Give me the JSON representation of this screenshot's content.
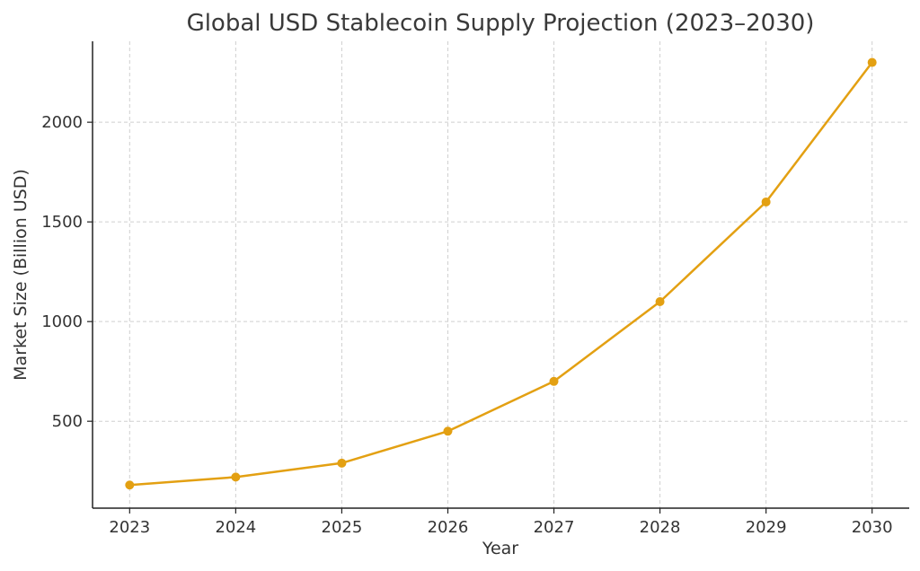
{
  "chart_data": {
    "type": "line",
    "title": "Global USD Stablecoin Supply Projection (2023–2030)",
    "xlabel": "Year",
    "ylabel": "Market Size (Billion USD)",
    "categories": [
      "2023",
      "2024",
      "2025",
      "2026",
      "2027",
      "2028",
      "2029",
      "2030"
    ],
    "x": [
      2023,
      2024,
      2025,
      2026,
      2027,
      2028,
      2029,
      2030
    ],
    "series": [
      {
        "values": [
          180,
          220,
          290,
          450,
          700,
          1100,
          1600,
          2300
        ]
      }
    ],
    "yticks": [
      500,
      1000,
      1500,
      2000
    ],
    "ytick_labels": [
      "500",
      "1000",
      "1500",
      "2000"
    ],
    "ylim": [
      64,
      2406
    ],
    "xlim": [
      2022.65,
      2030.35
    ],
    "grid": true,
    "legend": "none",
    "line_color": "#E3A012"
  }
}
